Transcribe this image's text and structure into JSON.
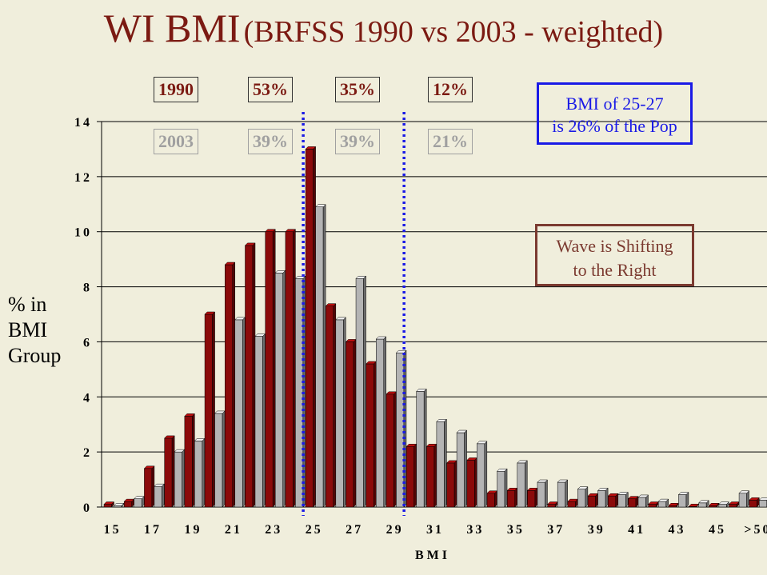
{
  "title": {
    "main": "WI BMI",
    "sub": "(BRFSS 1990 vs 2003 - weighted)"
  },
  "boxes_1990": [
    "1990",
    "53%",
    "35%",
    "12%"
  ],
  "boxes_2003": [
    "2003",
    "39%",
    "39%",
    "21%"
  ],
  "note_blue": {
    "line1": "BMI of 25-27",
    "line2": "is 26% of the Pop"
  },
  "note_brown": {
    "line1": "Wave is Shifting",
    "line2": "to the Right"
  },
  "ylabel": {
    "line1": "% in",
    "line2": "BMI",
    "line3": "Group"
  },
  "xlabel": "BMI",
  "colors": {
    "s1990": "#8b0a0a",
    "s2003": "#b4b4b4",
    "divider": "#1a1ae6"
  },
  "chart_data": {
    "type": "bar",
    "categories": [
      "15",
      "16",
      "17",
      "18",
      "19",
      "20",
      "21",
      "22",
      "23",
      "24",
      "25",
      "26",
      "27",
      "28",
      "29",
      "30",
      "31",
      "32",
      "33",
      "34",
      "35",
      "36",
      "37",
      "38",
      "39",
      "40",
      "41",
      "42",
      "43",
      "44",
      "45",
      "46",
      ">50"
    ],
    "series": [
      {
        "values": [
          0.1,
          0.2,
          1.4,
          2.5,
          3.3,
          7.0,
          8.8,
          9.5,
          10.0,
          10.0,
          13.0,
          7.3,
          6.0,
          5.2,
          4.1,
          2.2,
          2.2,
          1.6,
          1.7,
          0.5,
          0.6,
          0.6,
          0.1,
          0.2,
          0.4,
          0.4,
          0.3,
          0.1,
          0.05,
          0.02,
          0.05,
          0.1,
          0.25
        ]
      },
      {
        "values": [
          0.05,
          0.3,
          0.75,
          2.0,
          2.4,
          3.4,
          6.8,
          6.2,
          8.5,
          8.3,
          10.9,
          6.8,
          8.3,
          6.1,
          5.6,
          4.2,
          3.1,
          2.7,
          2.3,
          1.3,
          1.6,
          0.9,
          0.9,
          0.65,
          0.6,
          0.45,
          0.35,
          0.2,
          0.45,
          0.15,
          0.1,
          0.5,
          0.25
        ]
      }
    ],
    "tick_labels": [
      "15",
      "17",
      "19",
      "21",
      "23",
      "25",
      "27",
      "29",
      "31",
      "33",
      "35",
      "37",
      "39",
      "41",
      "43",
      "45",
      ">50"
    ],
    "yticks": [
      "0",
      "2",
      "4",
      "6",
      "8",
      "10",
      "12",
      "14"
    ],
    "ylim": [
      0,
      14
    ],
    "dividers": [
      "24.5",
      "29.5"
    ]
  }
}
